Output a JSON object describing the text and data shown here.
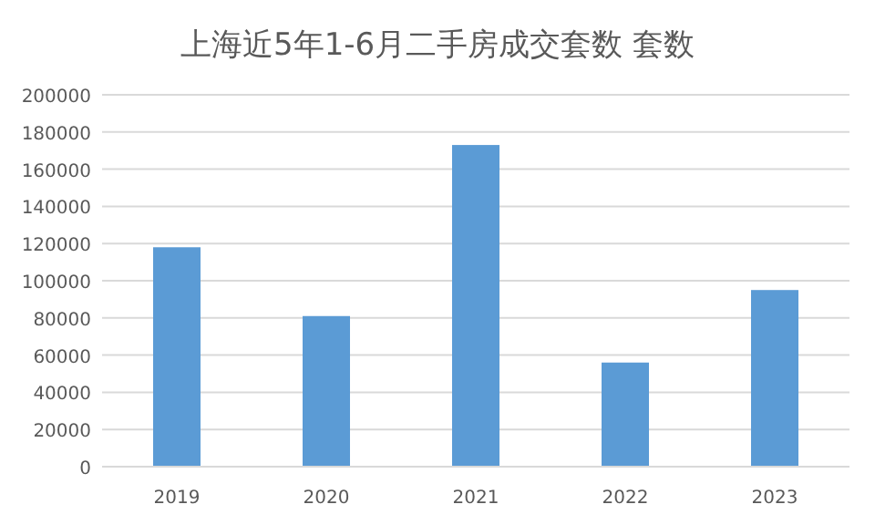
{
  "chart_data": {
    "type": "bar",
    "title": "上海近5年1-6月二手房成交套数 套数",
    "categories": [
      "2019",
      "2020",
      "2021",
      "2022",
      "2023"
    ],
    "values": [
      118000,
      81000,
      173000,
      56000,
      95000
    ],
    "color": "#5b9bd5",
    "ylim": [
      0,
      200000
    ],
    "yticks": [
      0,
      20000,
      40000,
      60000,
      80000,
      100000,
      120000,
      140000,
      160000,
      180000,
      200000
    ],
    "grid": "y"
  }
}
